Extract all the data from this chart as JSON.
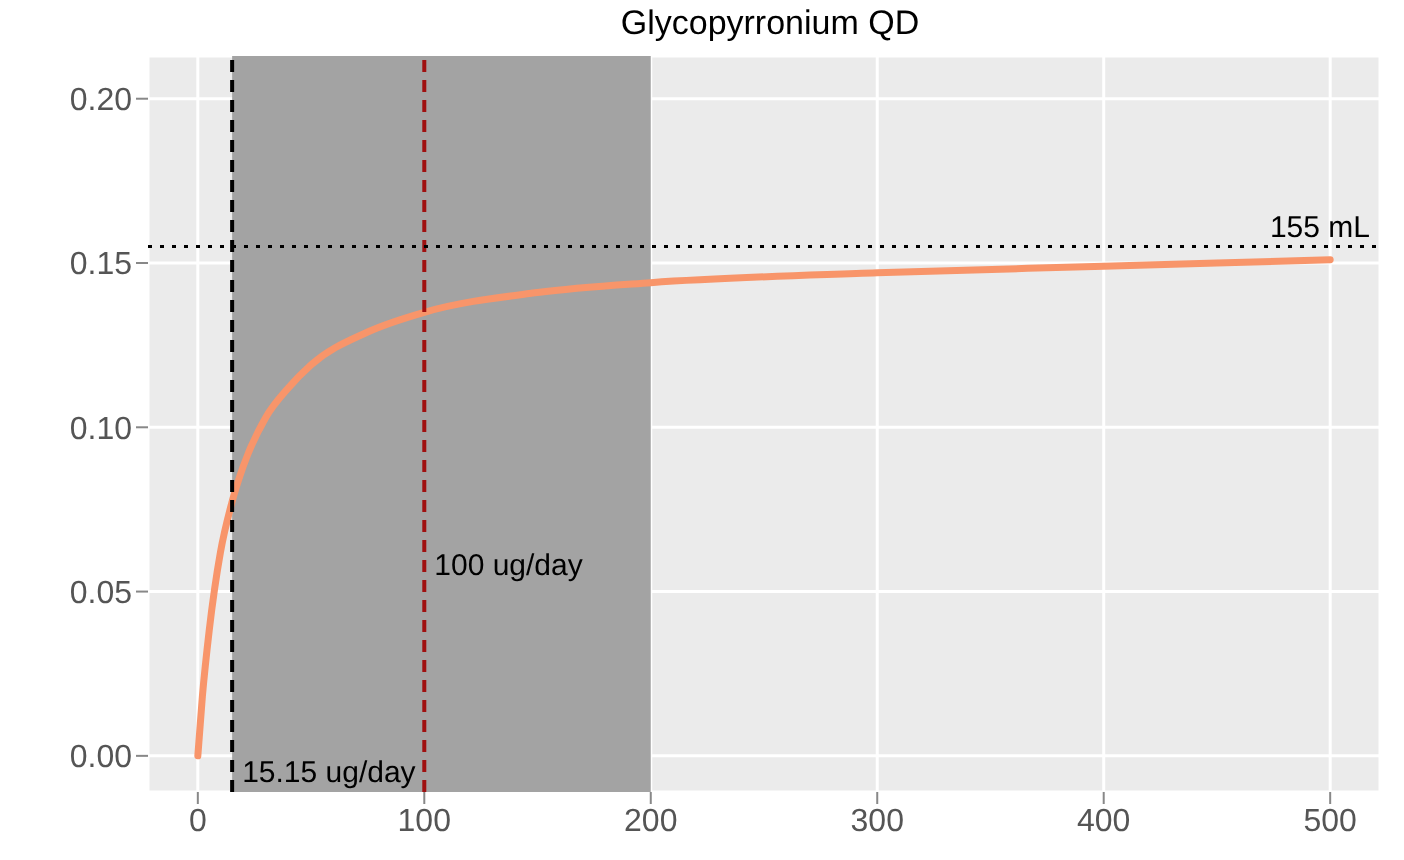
{
  "chart_data": {
    "type": "line",
    "title": "Glycopyrronium QD",
    "x": [
      0,
      2,
      5,
      10,
      15,
      20,
      30,
      40,
      50,
      75,
      100,
      150,
      200,
      300,
      400,
      500
    ],
    "series": [
      {
        "color": "#f8956a",
        "values": [
          0,
          0.018,
          0.038,
          0.062,
          0.077,
          0.088,
          0.103,
          0.112,
          0.119,
          0.129,
          0.135,
          0.141,
          0.144,
          0.147,
          0.149,
          0.151
        ]
      }
    ],
    "xlim": [
      -22,
      522
    ],
    "xticks": [
      0,
      100,
      200,
      300,
      400,
      500
    ],
    "ylim": [
      -0.011,
      0.213
    ],
    "yticks": [
      {
        "value": 0,
        "label": "0.00"
      },
      {
        "value": 0.05,
        "label": "0.05"
      },
      {
        "value": 0.1,
        "label": "0.10"
      },
      {
        "value": 0.15,
        "label": "0.15"
      },
      {
        "value": 0.2,
        "label": "0.20"
      }
    ],
    "grid": true,
    "marker": "none",
    "line_style": "solid",
    "bands": [
      {
        "axis": "x",
        "from": 15.15,
        "to": 200,
        "color": "#a3a3a3"
      }
    ],
    "ref_lines": [
      {
        "axis": "x",
        "value": 15.15,
        "label": "15.15 ug/day",
        "color": "#000000",
        "line_style": "dashed"
      },
      {
        "axis": "x",
        "value": 100,
        "label": "100 ug/day",
        "color": "#a01010",
        "line_style": "dashed"
      },
      {
        "axis": "y",
        "value": 0.155,
        "label": "155 mL",
        "color": "#000000",
        "line_style": "dotted"
      }
    ]
  }
}
